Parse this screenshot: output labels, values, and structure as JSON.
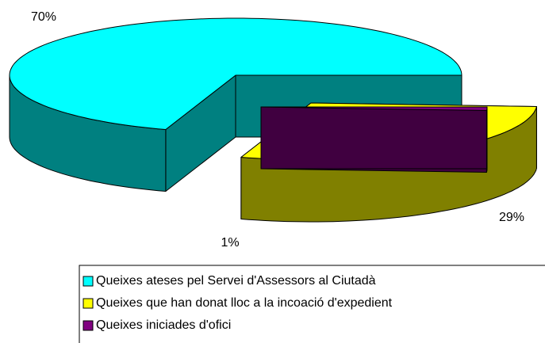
{
  "chart_data": {
    "type": "pie",
    "categories": [
      "Queixes ateses pel Servei d'Assessors al Ciutadà",
      "Queixes que han donat lloc a la incoació d'expedient",
      "Queixes iniciades d'ofici"
    ],
    "values": [
      70,
      29,
      1
    ],
    "value_labels": [
      "70%",
      "29%",
      "1%"
    ],
    "colors": [
      "#00FFFF",
      "#FFFF00",
      "#800080"
    ]
  }
}
